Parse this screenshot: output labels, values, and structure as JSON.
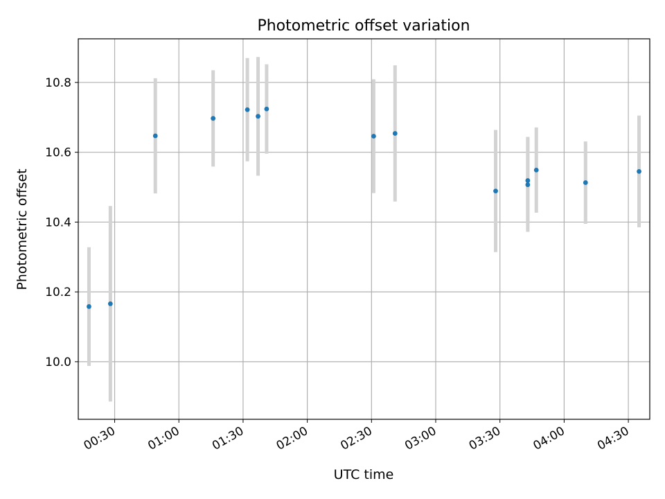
{
  "chart_data": {
    "type": "scatter",
    "title": "Photometric offset variation",
    "xlabel": "UTC time",
    "ylabel": "Photometric offset",
    "x_axis_type": "time",
    "xlim": [
      "00:13",
      "04:40"
    ],
    "ylim": [
      9.835,
      10.925
    ],
    "grid": true,
    "legend": "none",
    "x_ticks": [
      "00:30",
      "01:00",
      "01:30",
      "02:00",
      "02:30",
      "03:00",
      "03:30",
      "04:00",
      "04:30"
    ],
    "y_ticks": [
      10.0,
      10.2,
      10.4,
      10.6,
      10.8
    ],
    "colors": {
      "point": "#1f77b4",
      "error_bar": "#d3d3d3",
      "grid": "#b0b0b0",
      "frame": "#000000"
    },
    "series": [
      {
        "points": [
          {
            "x": "00:18",
            "y": 10.158,
            "err": 0.17
          },
          {
            "x": "00:28",
            "y": 10.166,
            "err": 0.28
          },
          {
            "x": "00:49",
            "y": 10.647,
            "err": 0.165
          },
          {
            "x": "01:16",
            "y": 10.697,
            "err": 0.138
          },
          {
            "x": "01:32",
            "y": 10.722,
            "err": 0.148
          },
          {
            "x": "01:37",
            "y": 10.703,
            "err": 0.17
          },
          {
            "x": "01:41",
            "y": 10.724,
            "err": 0.128
          },
          {
            "x": "02:31",
            "y": 10.646,
            "err": 0.163
          },
          {
            "x": "02:41",
            "y": 10.654,
            "err": 0.195
          },
          {
            "x": "03:28",
            "y": 10.489,
            "err": 0.175
          },
          {
            "x": "03:43",
            "y": 10.519,
            "err": 0.125
          },
          {
            "x": "03:43",
            "y": 10.507,
            "err": 0.135
          },
          {
            "x": "03:47",
            "y": 10.549,
            "err": 0.122
          },
          {
            "x": "04:10",
            "y": 10.513,
            "err": 0.118
          },
          {
            "x": "04:35",
            "y": 10.545,
            "err": 0.16
          }
        ]
      }
    ]
  }
}
